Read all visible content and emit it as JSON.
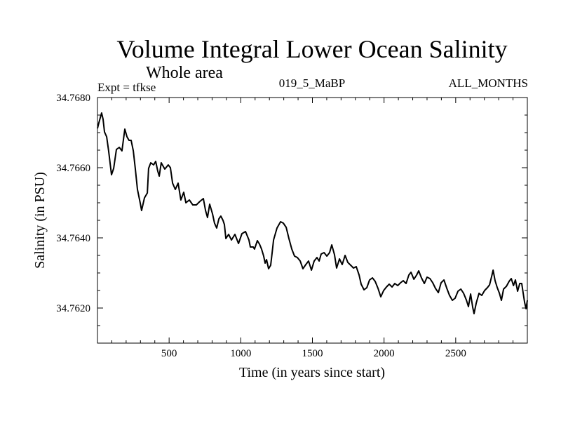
{
  "chart_data": {
    "type": "line",
    "title": "Volume Integral Lower Ocean Salinity",
    "subtitle": "Whole area",
    "annotations": {
      "left": "Expt = tfkse",
      "center": "019_5_MaBP",
      "right": "ALL_MONTHS"
    },
    "xlabel": "Time (in years since start)",
    "ylabel": "Salinity (in PSU)",
    "xlim": [
      0,
      3000
    ],
    "ylim": [
      34.761,
      34.768
    ],
    "x_major_ticks": [
      500,
      1000,
      1500,
      2000,
      2500
    ],
    "x_tick_labels": [
      "500",
      "1000",
      "1500",
      "2000",
      "2500"
    ],
    "x_minor_step": 100,
    "y_major_ticks": [
      34.762,
      34.764,
      34.766,
      34.768
    ],
    "y_tick_labels": [
      "34.7620",
      "34.7640",
      "34.7660",
      "34.7680"
    ],
    "y_minor_step": 0.0005,
    "grid": false,
    "legend": "none",
    "series": [
      {
        "name": "Salinity",
        "color": "#000000",
        "x": [
          0,
          10,
          29,
          39,
          49,
          64,
          78,
          98,
          113,
          132,
          152,
          171,
          191,
          206,
          220,
          235,
          250,
          264,
          279,
          299,
          308,
          328,
          348,
          357,
          372,
          392,
          406,
          421,
          431,
          445,
          470,
          494,
          509,
          524,
          543,
          563,
          582,
          602,
          617,
          641,
          665,
          690,
          715,
          739,
          754,
          768,
          783,
          803,
          817,
          832,
          847,
          861,
          876,
          886,
          896,
          915,
          935,
          959,
          984,
          1008,
          1033,
          1057,
          1067,
          1087,
          1096,
          1116,
          1131,
          1145,
          1160,
          1170,
          1180,
          1194,
          1209,
          1219,
          1229,
          1253,
          1278,
          1297,
          1317,
          1336,
          1356,
          1375,
          1395,
          1415,
          1434,
          1454,
          1473,
          1493,
          1512,
          1532,
          1547,
          1561,
          1581,
          1601,
          1620,
          1635,
          1654,
          1669,
          1689,
          1708,
          1728,
          1747,
          1767,
          1787,
          1806,
          1826,
          1840,
          1860,
          1880,
          1899,
          1919,
          1938,
          1958,
          1977,
          1997,
          2017,
          2036,
          2056,
          2075,
          2095,
          2115,
          2134,
          2154,
          2173,
          2188,
          2208,
          2227,
          2242,
          2261,
          2281,
          2300,
          2320,
          2340,
          2359,
          2379,
          2398,
          2418,
          2438,
          2457,
          2477,
          2496,
          2516,
          2536,
          2555,
          2575,
          2589,
          2604,
          2619,
          2628,
          2643,
          2663,
          2682,
          2702,
          2721,
          2736,
          2751,
          2761,
          2775,
          2790,
          2805,
          2819,
          2834,
          2854,
          2873,
          2888,
          2903,
          2917,
          2932,
          2947,
          2961,
          2971,
          2981,
          2991,
          3000
        ],
        "y": [
          34.76712,
          34.76728,
          34.76756,
          34.76738,
          34.76702,
          34.76688,
          34.76648,
          34.7658,
          34.76598,
          34.76652,
          34.76658,
          34.76648,
          34.7671,
          34.76688,
          34.76678,
          34.76678,
          34.76648,
          34.76598,
          34.76538,
          34.76498,
          34.76478,
          34.76514,
          34.76528,
          34.76598,
          34.76614,
          34.76608,
          34.76618,
          34.7659,
          34.76576,
          34.76614,
          34.76596,
          34.76608,
          34.766,
          34.76556,
          34.76538,
          34.76556,
          34.76508,
          34.7653,
          34.765,
          34.76508,
          34.76494,
          34.76494,
          34.76504,
          34.76512,
          34.76478,
          34.76458,
          34.76496,
          34.76468,
          34.76442,
          34.76428,
          34.76454,
          34.76462,
          34.7645,
          34.76438,
          34.76398,
          34.7641,
          34.76394,
          34.7641,
          34.76384,
          34.76412,
          34.76418,
          34.76394,
          34.76374,
          34.76374,
          34.76368,
          34.76392,
          34.76382,
          34.76368,
          34.76348,
          34.76328,
          34.76338,
          34.76312,
          34.76322,
          34.76358,
          34.76394,
          34.76428,
          34.76446,
          34.76442,
          34.7643,
          34.76398,
          34.76368,
          34.76348,
          34.76344,
          34.76334,
          34.76312,
          34.76324,
          34.76334,
          34.76308,
          34.76334,
          34.76344,
          34.76334,
          34.76354,
          34.76358,
          34.76348,
          34.76358,
          34.7638,
          34.76352,
          34.76314,
          34.7634,
          34.76324,
          34.7635,
          34.7633,
          34.76322,
          34.76314,
          34.76318,
          34.76294,
          34.76268,
          34.76252,
          34.76258,
          34.7628,
          34.76286,
          34.76276,
          34.76256,
          34.76232,
          34.7625,
          34.7626,
          34.76268,
          34.7626,
          34.7627,
          34.76264,
          34.76272,
          34.76278,
          34.7627,
          34.76294,
          34.76302,
          34.76282,
          34.76294,
          34.76306,
          34.76286,
          34.7627,
          34.76288,
          34.76284,
          34.76272,
          34.76256,
          34.76244,
          34.76272,
          34.7628,
          34.76256,
          34.76236,
          34.76222,
          34.76228,
          34.76248,
          34.76254,
          34.76242,
          34.76222,
          34.76204,
          34.7624,
          34.76202,
          34.76184,
          34.76214,
          34.76242,
          34.76236,
          34.7625,
          34.76258,
          34.76266,
          34.7629,
          34.76308,
          34.76278,
          34.76258,
          34.76242,
          34.76222,
          34.76254,
          34.76262,
          34.76276,
          34.76284,
          34.76264,
          34.7628,
          34.76248,
          34.7627,
          34.7627,
          34.76242,
          34.76216,
          34.76198,
          34.76222
        ]
      }
    ]
  }
}
